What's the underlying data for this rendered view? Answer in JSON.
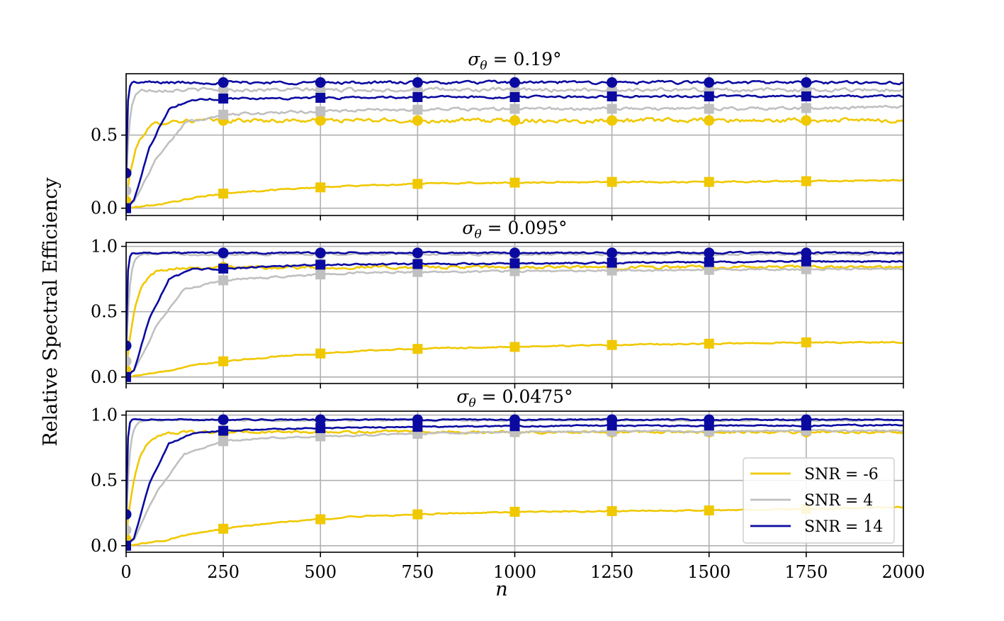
{
  "chart_data": {
    "type": "line",
    "ylabel": "Relative Spectral Efficiency",
    "xlabel": "n",
    "xlim": [
      0,
      2000
    ],
    "xticks": [
      0,
      250,
      500,
      750,
      1000,
      1250,
      1500,
      1750,
      2000
    ],
    "xtick_labels": [
      "0",
      "250",
      "500",
      "750",
      "1000",
      "1250",
      "1500",
      "1750",
      "2000"
    ],
    "legend": {
      "placement": "lower-right",
      "entries": [
        {
          "label": "SNR = -6",
          "color": "#f0c800"
        },
        {
          "label": "SNR = 4",
          "color": "#c0c0c0"
        },
        {
          "label": "SNR = 14",
          "color": "#0a0aa0"
        }
      ]
    },
    "panels": [
      {
        "title": "σθ = 0.19°",
        "title_main": "σ",
        "title_sub": "θ",
        "title_rest": " = 0.19°",
        "ylim": [
          -0.05,
          0.92
        ],
        "yticks": [
          0.0,
          0.5
        ],
        "ytick_labels": [
          "0.0",
          "0.5"
        ],
        "series": [
          {
            "snr": "-6",
            "marker": "circle",
            "color": "#f0c800",
            "rise": 25,
            "start": 0.05,
            "final": 0.6,
            "noise": 0.012
          },
          {
            "snr": "4",
            "marker": "circle",
            "color": "#c0c0c0",
            "rise": 8,
            "start": 0.12,
            "final": 0.81,
            "noise": 0.01
          },
          {
            "snr": "14",
            "marker": "circle",
            "color": "#0a0aa0",
            "rise": 3,
            "start": 0.24,
            "final": 0.86,
            "noise": 0.008
          },
          {
            "snr": "-6",
            "marker": "square",
            "color": "#f0c800",
            "x": [
              0,
              100,
              150,
              250,
              400,
              600,
              800,
              1000,
              1250,
              1500,
              1750,
              2000
            ],
            "y": [
              0.0,
              0.03,
              0.06,
              0.1,
              0.13,
              0.155,
              0.17,
              0.175,
              0.18,
              0.18,
              0.185,
              0.19
            ],
            "noise": 0.004
          },
          {
            "snr": "4",
            "marker": "square",
            "color": "#c0c0c0",
            "x": [
              0,
              20,
              80,
              150,
              250,
              400,
              600,
              800,
              1000,
              1250,
              1500,
              1750,
              2000
            ],
            "y": [
              0.0,
              0.05,
              0.35,
              0.58,
              0.64,
              0.655,
              0.67,
              0.675,
              0.68,
              0.68,
              0.68,
              0.685,
              0.69
            ],
            "noise": 0.008
          },
          {
            "snr": "14",
            "marker": "square",
            "color": "#0a0aa0",
            "x": [
              0,
              20,
              60,
              110,
              170,
              250,
              500,
              750,
              1000,
              1250,
              1500,
              1750,
              2000
            ],
            "y": [
              0.0,
              0.05,
              0.42,
              0.68,
              0.74,
              0.75,
              0.755,
              0.76,
              0.76,
              0.765,
              0.765,
              0.765,
              0.765
            ],
            "noise": 0.006
          }
        ]
      },
      {
        "title": "σθ = 0.095°",
        "title_main": "σ",
        "title_sub": "θ",
        "title_rest": " = 0.095°",
        "ylim": [
          -0.05,
          1.03
        ],
        "yticks": [
          0.0,
          0.5,
          1.0
        ],
        "ytick_labels": [
          "0.0",
          "0.5",
          "1.0"
        ],
        "series": [
          {
            "snr": "-6",
            "marker": "circle",
            "color": "#f0c800",
            "rise": 25,
            "start": 0.05,
            "final": 0.84,
            "noise": 0.01
          },
          {
            "snr": "4",
            "marker": "circle",
            "color": "#c0c0c0",
            "rise": 8,
            "start": 0.12,
            "final": 0.94,
            "noise": 0.006
          },
          {
            "snr": "14",
            "marker": "circle",
            "color": "#0a0aa0",
            "rise": 3,
            "start": 0.24,
            "final": 0.95,
            "noise": 0.005
          },
          {
            "snr": "-6",
            "marker": "square",
            "color": "#f0c800",
            "x": [
              0,
              100,
              150,
              250,
              400,
              600,
              800,
              1000,
              1250,
              1500,
              1750,
              2000
            ],
            "y": [
              0.0,
              0.04,
              0.08,
              0.12,
              0.16,
              0.2,
              0.22,
              0.23,
              0.245,
              0.255,
              0.265,
              0.265
            ],
            "noise": 0.004
          },
          {
            "snr": "4",
            "marker": "square",
            "color": "#c0c0c0",
            "x": [
              0,
              20,
              80,
              150,
              250,
              400,
              600,
              800,
              1000,
              1250,
              1500,
              1750,
              2000
            ],
            "y": [
              0.0,
              0.05,
              0.4,
              0.67,
              0.74,
              0.77,
              0.8,
              0.805,
              0.81,
              0.815,
              0.82,
              0.825,
              0.83
            ],
            "noise": 0.006
          },
          {
            "snr": "14",
            "marker": "square",
            "color": "#0a0aa0",
            "x": [
              0,
              20,
              60,
              110,
              170,
              250,
              500,
              750,
              1000,
              1250,
              1500,
              1750,
              2000
            ],
            "y": [
              0.0,
              0.05,
              0.45,
              0.75,
              0.82,
              0.83,
              0.86,
              0.865,
              0.87,
              0.875,
              0.88,
              0.885,
              0.885
            ],
            "noise": 0.005
          }
        ]
      },
      {
        "title": "σθ = 0.0475°",
        "title_main": "σ",
        "title_sub": "θ",
        "title_rest": " = 0.0475°",
        "ylim": [
          -0.05,
          1.03
        ],
        "yticks": [
          0.0,
          0.5,
          1.0
        ],
        "ytick_labels": [
          "0.0",
          "0.5",
          "1.0"
        ],
        "series": [
          {
            "snr": "-6",
            "marker": "circle",
            "color": "#f0c800",
            "rise": 25,
            "start": 0.05,
            "final": 0.87,
            "noise": 0.008
          },
          {
            "snr": "4",
            "marker": "circle",
            "color": "#c0c0c0",
            "rise": 8,
            "start": 0.12,
            "final": 0.96,
            "noise": 0.005
          },
          {
            "snr": "14",
            "marker": "circle",
            "color": "#0a0aa0",
            "rise": 3,
            "start": 0.24,
            "final": 0.965,
            "noise": 0.004
          },
          {
            "snr": "-6",
            "marker": "square",
            "color": "#f0c800",
            "x": [
              0,
              100,
              150,
              250,
              400,
              600,
              800,
              1000,
              1250,
              1500,
              1750,
              2000
            ],
            "y": [
              0.0,
              0.04,
              0.08,
              0.13,
              0.18,
              0.225,
              0.245,
              0.26,
              0.265,
              0.27,
              0.28,
              0.295
            ],
            "noise": 0.004
          },
          {
            "snr": "4",
            "marker": "square",
            "color": "#c0c0c0",
            "x": [
              0,
              20,
              80,
              150,
              250,
              400,
              600,
              800,
              1000,
              1250,
              1500,
              1750,
              2000
            ],
            "y": [
              0.0,
              0.05,
              0.42,
              0.7,
              0.8,
              0.83,
              0.845,
              0.86,
              0.87,
              0.875,
              0.875,
              0.88,
              0.88
            ],
            "noise": 0.005
          },
          {
            "snr": "14",
            "marker": "square",
            "color": "#0a0aa0",
            "x": [
              0,
              20,
              60,
              110,
              170,
              250,
              500,
              750,
              1000,
              1250,
              1500,
              1750,
              2000
            ],
            "y": [
              0.0,
              0.05,
              0.48,
              0.78,
              0.86,
              0.88,
              0.9,
              0.91,
              0.915,
              0.92,
              0.92,
              0.92,
              0.925
            ],
            "noise": 0.004
          }
        ]
      }
    ]
  }
}
